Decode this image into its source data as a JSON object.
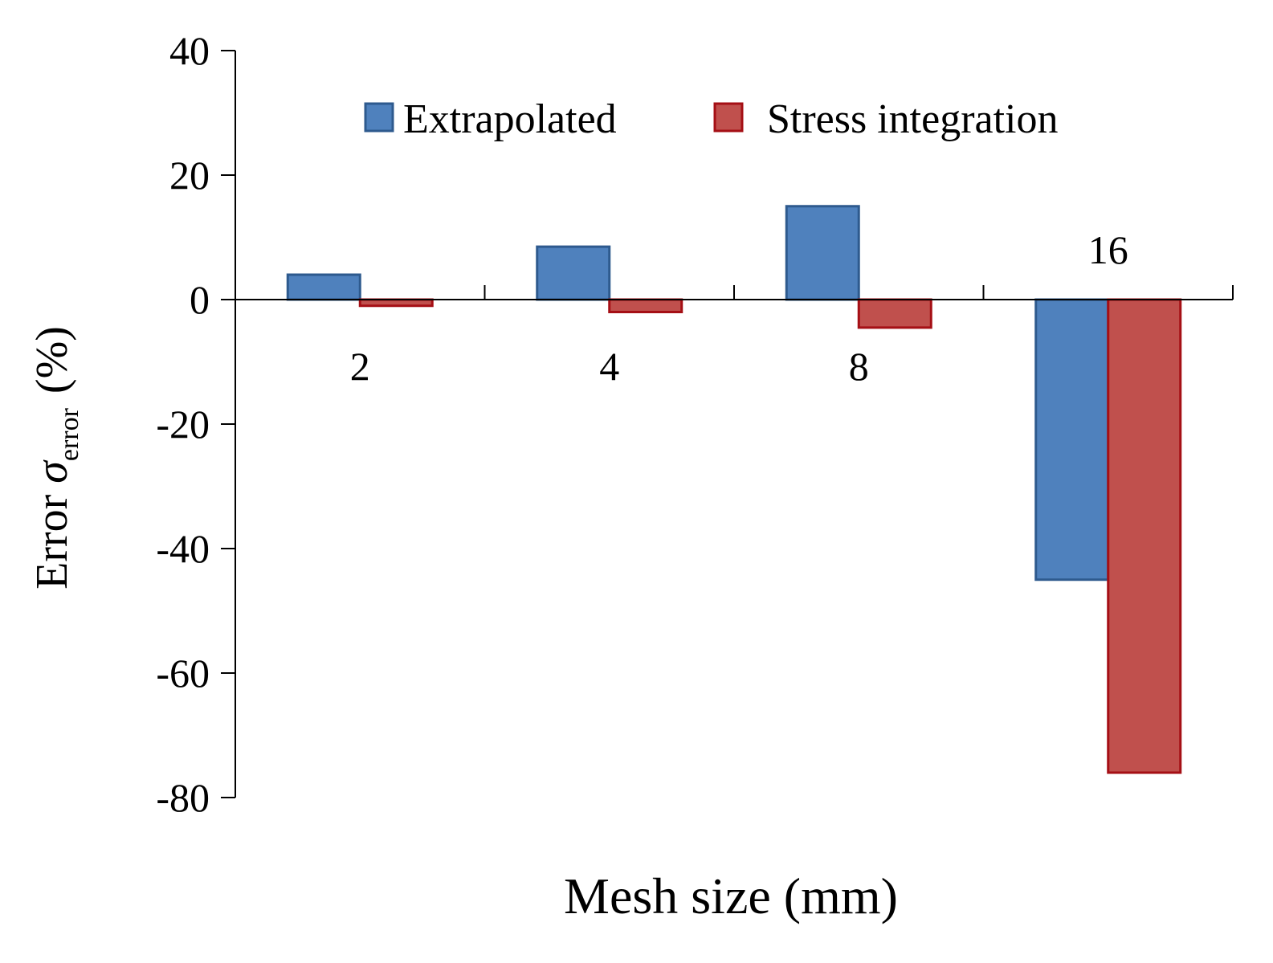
{
  "chart_data": {
    "type": "bar",
    "title": "",
    "xlabel": "Mesh size (mm)",
    "ylabel": {
      "prefix": "Error ",
      "symbol": "σ",
      "subscript": "error",
      "unit": "(%)"
    },
    "categories": [
      "2",
      "4",
      "8",
      "16"
    ],
    "series": [
      {
        "name": "Extrapolated",
        "color": "#4F81BD",
        "edge": "#2E5A8E",
        "values": [
          4,
          8.5,
          15,
          -45
        ]
      },
      {
        "name": "Stress integration",
        "color": "#C0504D",
        "edge": "#A50F15",
        "values": [
          -1,
          -2,
          -4.5,
          -76
        ]
      }
    ],
    "ylim": [
      -80,
      40
    ],
    "yticks": [
      40,
      20,
      0,
      -20,
      -40,
      -60,
      -80
    ],
    "legend_position": "top"
  }
}
